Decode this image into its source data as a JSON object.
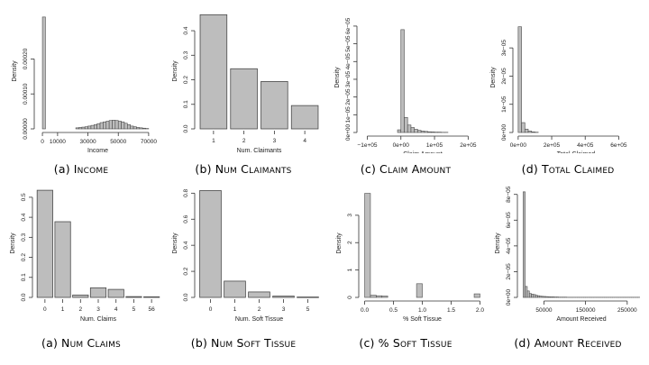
{
  "chart_data": [
    {
      "id": "income",
      "type": "bar",
      "caption": "(a) Income",
      "xlabel": "Income",
      "ylabel": "Density",
      "xlim": [
        -3000,
        76000
      ],
      "ylim": [
        0,
        0.00033
      ],
      "xticks": [
        0,
        10000,
        30000,
        50000,
        70000
      ],
      "xtick_labels": [
        "0",
        "10000",
        "30000",
        "50000",
        "70000"
      ],
      "yticks": [
        0,
        0.0001,
        0.0002
      ],
      "ytick_labels": [
        "0.00000",
        "0.00010",
        "0.00020"
      ],
      "bin_start": 0,
      "bin_width": 2000,
      "values": [
        0.00032,
        0,
        0,
        0,
        0,
        0,
        0,
        0,
        0,
        0,
        0,
        3e-06,
        4e-06,
        5e-06,
        6e-06,
        8e-06,
        1e-05,
        1.2e-05,
        1.5e-05,
        1.8e-05,
        2e-05,
        2.2e-05,
        2.4e-05,
        2.5e-05,
        2.4e-05,
        2.2e-05,
        2e-05,
        1.6e-05,
        1.2e-05,
        8e-06,
        6e-06,
        4e-06,
        3e-06,
        2e-06,
        1e-06
      ]
    },
    {
      "id": "num-claimants",
      "type": "bar",
      "caption": "(b) Num Claimants",
      "xlabel": "Num. Claimants",
      "ylabel": "Density",
      "ylim": [
        0,
        0.47
      ],
      "categories": [
        "1",
        "2",
        "3",
        "4"
      ],
      "yticks": [
        0,
        0.1,
        0.2,
        0.3,
        0.4
      ],
      "ytick_labels": [
        "0.0",
        "0.1",
        "0.2",
        "0.3",
        "0.4"
      ],
      "values": [
        0.465,
        0.245,
        0.193,
        0.095
      ]
    },
    {
      "id": "claim-amount",
      "type": "bar",
      "caption": "(c) Claim Amount",
      "xlabel": "Claim Amount",
      "ylabel": "Density",
      "xlim": [
        -120000,
        250000
      ],
      "ylim": [
        0,
        6.2e-05
      ],
      "xticks": [
        -100000,
        0,
        100000,
        200000
      ],
      "xtick_labels": [
        "−1e+05",
        "0e+00",
        "1e+05",
        "2e+05"
      ],
      "yticks": [
        0,
        1e-05,
        2e-05,
        3e-05,
        4e-05,
        5e-05,
        6e-05
      ],
      "ytick_labels": [
        "0e+00",
        "1e−05",
        "2e−05",
        "3e−05",
        "4e−05",
        "5e−05",
        "6e−05"
      ],
      "bin_start": -10000,
      "bin_width": 10000,
      "values": [
        1.5e-06,
        5.8e-05,
        8.5e-06,
        4.2e-06,
        2.8e-06,
        1.8e-06,
        1.2e-06,
        8e-07,
        6e-07,
        4e-07,
        3e-07,
        2e-07,
        2e-07,
        1e-07,
        1e-07
      ]
    },
    {
      "id": "total-claimed",
      "type": "bar",
      "caption": "(d) Total Claimed",
      "xlabel": "Total Claimed",
      "ylabel": "Density",
      "xlim": [
        -10000,
        700000
      ],
      "ylim": [
        0,
        3.9e-05
      ],
      "xticks": [
        0,
        200000,
        400000,
        600000
      ],
      "xtick_labels": [
        "0e+00",
        "2e+05",
        "4e+05",
        "6e+05"
      ],
      "yticks": [
        0,
        1e-05,
        2e-05,
        3e-05
      ],
      "ytick_labels": [
        "0e+00",
        "1e−05",
        "2e−05",
        "3e−05"
      ],
      "bin_start": 0,
      "bin_width": 20000,
      "values": [
        3.75e-05,
        3.5e-06,
        1.2e-06,
        5e-07,
        2e-07,
        1e-07
      ]
    },
    {
      "id": "num-claims",
      "type": "bar",
      "caption": "(a) Num Claims",
      "xlabel": "Num. Claims",
      "ylabel": "Density",
      "ylim": [
        0,
        0.54
      ],
      "categories": [
        "0",
        "1",
        "2",
        "3",
        "4",
        "5",
        "56"
      ],
      "yticks": [
        0,
        0.1,
        0.2,
        0.3,
        0.4,
        0.5
      ],
      "ytick_labels": [
        "0.0",
        "0.1",
        "0.2",
        "0.3",
        "0.4",
        "0.5"
      ],
      "values": [
        0.535,
        0.378,
        0.012,
        0.048,
        0.04,
        0.004,
        0.003
      ]
    },
    {
      "id": "num-soft-tissue",
      "type": "bar",
      "caption": "(b) Num Soft Tissue",
      "xlabel": "Num. Soft Tissue",
      "ylabel": "Density",
      "ylim": [
        0,
        0.83
      ],
      "categories": [
        "0",
        "1",
        "2",
        "3",
        "5"
      ],
      "yticks": [
        0,
        0.2,
        0.4,
        0.6,
        0.8
      ],
      "ytick_labels": [
        "0.0",
        "0.2",
        "0.4",
        "0.6",
        "0.8"
      ],
      "values": [
        0.82,
        0.125,
        0.042,
        0.01,
        0.003
      ]
    },
    {
      "id": "pct-soft-tissue",
      "type": "bar",
      "caption": "(c) % Soft Tissue",
      "xlabel": "% Soft Tissue",
      "ylabel": "Density",
      "xlim": [
        -0.04,
        2.04
      ],
      "ylim": [
        0,
        3.95
      ],
      "xticks": [
        0,
        0.5,
        1,
        1.5,
        2
      ],
      "xtick_labels": [
        "0.0",
        "0.5",
        "1.0",
        "1.5",
        "2.0"
      ],
      "yticks": [
        0,
        1,
        2,
        3
      ],
      "ytick_labels": [
        "0",
        "1",
        "2",
        "3"
      ],
      "bin_start": 0,
      "bin_width": 0.1,
      "values": [
        3.8,
        0.08,
        0.06,
        0.05,
        0,
        0,
        0,
        0,
        0,
        0.5,
        0,
        0,
        0,
        0,
        0,
        0,
        0,
        0,
        0,
        0.13
      ]
    },
    {
      "id": "amount-received",
      "type": "bar",
      "caption": "(d) Amount Received",
      "xlabel": "Amount Received",
      "ylabel": "Density",
      "xlim": [
        -5000,
        285000
      ],
      "ylim": [
        0,
        8.4e-05
      ],
      "xticks": [
        50000,
        150000,
        250000
      ],
      "xtick_labels": [
        "50000",
        "150000",
        "250000"
      ],
      "yticks": [
        0,
        2e-05,
        4e-05,
        6e-05,
        8e-05
      ],
      "ytick_labels": [
        "0e+00",
        "2e−05",
        "4e−05",
        "6e−05",
        "8e−05"
      ],
      "bin_start": 0,
      "bin_width": 5000,
      "values": [
        8.2e-05,
        8.5e-06,
        5e-06,
        3e-06,
        2.5e-06,
        2.2e-06,
        1.6e-06,
        1.3e-06,
        1e-06,
        8e-07,
        7e-07,
        6e-07,
        5e-07,
        4e-07,
        4e-07,
        3e-07,
        3e-07,
        2e-07,
        2e-07,
        2e-07,
        2e-07,
        1e-07,
        1e-07,
        1e-07,
        1e-07,
        1e-07,
        1e-07,
        1e-07,
        1e-07,
        1e-07,
        1e-07,
        1e-07,
        1e-07,
        1e-07,
        1e-07,
        1e-07,
        1e-07,
        1e-07,
        1e-07,
        1e-07,
        1e-07,
        1e-07,
        1e-07,
        1e-07,
        1e-07,
        1e-07,
        1e-07,
        1e-07,
        1e-07,
        1e-07,
        1e-07,
        1e-07,
        1e-07,
        1e-07,
        1e-07,
        1e-07
      ]
    }
  ],
  "captions": [
    {
      "label": "(a)",
      "title": "Income"
    },
    {
      "label": "(b)",
      "title": "Num Claimants"
    },
    {
      "label": "(c)",
      "title": "Claim Amount"
    },
    {
      "label": "(d)",
      "title": "Total Claimed"
    },
    {
      "label": "(a)",
      "title": "Num Claims"
    },
    {
      "label": "(b)",
      "title": "Num Soft Tissue"
    },
    {
      "label": "(c)",
      "title": "% Soft Tissue"
    },
    {
      "label": "(d)",
      "title": "Amount Received"
    }
  ],
  "colors": {
    "bar_fill": "#bdbdbd",
    "bar_stroke": "#4a4a4a",
    "axis": "#333333"
  }
}
